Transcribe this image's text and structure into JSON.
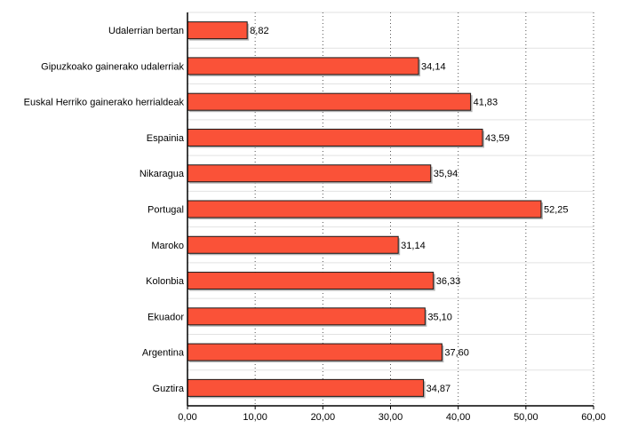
{
  "chart_data": {
    "type": "bar",
    "orientation": "horizontal",
    "categories": [
      "Udalerrian bertan",
      "Gipuzkoako gainerako udalerriak",
      "Euskal Herriko gainerako herrialdeak",
      "Espainia",
      "Nikaragua",
      "Portugal",
      "Maroko",
      "Kolonbia",
      "Ekuador",
      "Argentina",
      "Guztira"
    ],
    "values": [
      8.82,
      34.14,
      41.83,
      43.59,
      35.94,
      52.25,
      31.14,
      36.33,
      35.1,
      37.6,
      34.87
    ],
    "value_labels": [
      "8,82",
      "34,14",
      "41,83",
      "43,59",
      "35,94",
      "52,25",
      "31,14",
      "36,33",
      "35,10",
      "37,60",
      "34,87"
    ],
    "xlim": [
      0,
      60
    ],
    "x_ticks": [
      0,
      10,
      20,
      30,
      40,
      50,
      60
    ],
    "x_tick_labels": [
      "0,00",
      "10,00",
      "20,00",
      "30,00",
      "40,00",
      "50,00",
      "60,00"
    ],
    "title": "",
    "xlabel": "",
    "ylabel": "",
    "grid": "vertical dotted",
    "colors": {
      "bar_fill": "#fa5238",
      "bar_stroke": "#1a1a1a",
      "bar_shadow": "#b5b5b5",
      "grid_line": "#555555",
      "row_separator": "#e2e2e2",
      "axis": "#000000"
    }
  }
}
